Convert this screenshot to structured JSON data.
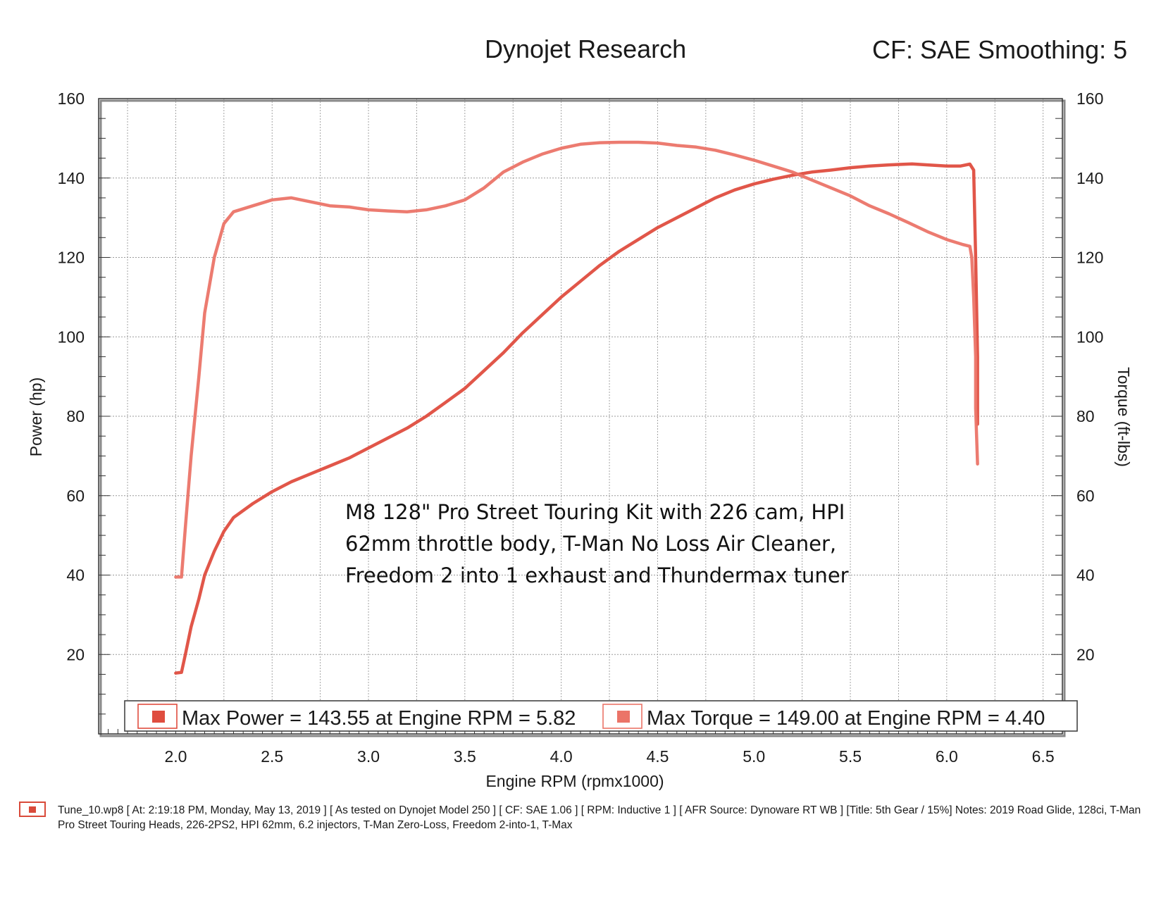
{
  "header": {
    "title": "Dynojet Research",
    "settings": "CF: SAE Smoothing: 5"
  },
  "annotation": {
    "lines": [
      "M8 128\" Pro Street Touring Kit with 226 cam, HPI",
      "62mm throttle body, T-Man No Loss Air Cleaner,",
      "Freedom 2 into 1 exhaust and Thundermax tuner"
    ]
  },
  "legend": {
    "power": "Max Power = 143.55 at Engine RPM = 5.82",
    "torque": "Max Torque = 149.00 at Engine RPM = 4.40"
  },
  "footer": {
    "text": "Tune_10.wp8 [ At: 2:19:18 PM, Monday, May 13, 2019 ] [ As tested on Dynojet Model 250 ] [ CF: SAE 1.06 ] [ RPM: Inductive 1 ] [ AFR Source: Dynoware RT WB ] [Title: 5th Gear / 15%]  Notes: 2019 Road Glide, 128ci, T-Man Pro Street Touring Heads, 226-2PS2, HPI 62mm, 6.2 injectors, T-Man Zero-Loss, Freedom 2-into-1, T-Max"
  },
  "colors": {
    "power": "#df4d3f",
    "torque": "#eb7468",
    "grid": "#9a9a9a",
    "frame": "#333333"
  },
  "chart_data": {
    "type": "line",
    "title": "Dynojet Research",
    "xlabel": "Engine RPM (rpmx1000)",
    "ylabel_left": "Power (hp)",
    "ylabel_right": "Torque (ft-lbs)",
    "xlim": [
      1.6,
      6.6
    ],
    "ylim": [
      0,
      160
    ],
    "x_ticks": [
      "2.0",
      "2.5",
      "3.0",
      "3.5",
      "4.0",
      "4.5",
      "5.0",
      "5.5",
      "6.0",
      "6.5"
    ],
    "y_ticks": [
      "20",
      "40",
      "60",
      "80",
      "100",
      "120",
      "140",
      "160"
    ],
    "grid": true,
    "series": [
      {
        "name": "Power",
        "axis": "left",
        "points": [
          [
            2.0,
            15.3
          ],
          [
            2.03,
            15.5
          ],
          [
            2.05,
            20
          ],
          [
            2.08,
            27
          ],
          [
            2.12,
            34
          ],
          [
            2.15,
            40
          ],
          [
            2.2,
            46
          ],
          [
            2.25,
            51
          ],
          [
            2.3,
            54.5
          ],
          [
            2.4,
            58
          ],
          [
            2.5,
            61
          ],
          [
            2.6,
            63.5
          ],
          [
            2.7,
            65.5
          ],
          [
            2.8,
            67.5
          ],
          [
            2.9,
            69.5
          ],
          [
            3.0,
            72
          ],
          [
            3.1,
            74.5
          ],
          [
            3.2,
            77
          ],
          [
            3.3,
            80
          ],
          [
            3.4,
            83.5
          ],
          [
            3.5,
            87
          ],
          [
            3.6,
            91.5
          ],
          [
            3.7,
            96
          ],
          [
            3.8,
            101
          ],
          [
            3.9,
            105.5
          ],
          [
            4.0,
            110
          ],
          [
            4.1,
            114
          ],
          [
            4.2,
            118
          ],
          [
            4.3,
            121.5
          ],
          [
            4.4,
            124.5
          ],
          [
            4.5,
            127.5
          ],
          [
            4.6,
            130
          ],
          [
            4.7,
            132.5
          ],
          [
            4.8,
            135
          ],
          [
            4.9,
            137
          ],
          [
            5.0,
            138.5
          ],
          [
            5.1,
            139.7
          ],
          [
            5.2,
            140.7
          ],
          [
            5.3,
            141.5
          ],
          [
            5.4,
            142
          ],
          [
            5.5,
            142.6
          ],
          [
            5.6,
            143
          ],
          [
            5.7,
            143.3
          ],
          [
            5.82,
            143.55
          ],
          [
            5.9,
            143.3
          ],
          [
            6.0,
            143
          ],
          [
            6.07,
            143
          ],
          [
            6.12,
            143.5
          ],
          [
            6.14,
            142
          ],
          [
            6.15,
            120
          ],
          [
            6.16,
            95
          ],
          [
            6.16,
            78
          ]
        ]
      },
      {
        "name": "Torque",
        "axis": "right",
        "points": [
          [
            2.0,
            39.5
          ],
          [
            2.03,
            39.5
          ],
          [
            2.05,
            52
          ],
          [
            2.08,
            70
          ],
          [
            2.12,
            90
          ],
          [
            2.15,
            106
          ],
          [
            2.2,
            120
          ],
          [
            2.25,
            128.5
          ],
          [
            2.3,
            131.5
          ],
          [
            2.4,
            133
          ],
          [
            2.5,
            134.5
          ],
          [
            2.6,
            135
          ],
          [
            2.7,
            134
          ],
          [
            2.8,
            133
          ],
          [
            2.9,
            132.7
          ],
          [
            3.0,
            132
          ],
          [
            3.1,
            131.7
          ],
          [
            3.2,
            131.5
          ],
          [
            3.3,
            132
          ],
          [
            3.4,
            133
          ],
          [
            3.5,
            134.5
          ],
          [
            3.6,
            137.5
          ],
          [
            3.7,
            141.5
          ],
          [
            3.8,
            144
          ],
          [
            3.9,
            146
          ],
          [
            4.0,
            147.5
          ],
          [
            4.1,
            148.5
          ],
          [
            4.2,
            148.9
          ],
          [
            4.3,
            149
          ],
          [
            4.4,
            149
          ],
          [
            4.5,
            148.8
          ],
          [
            4.6,
            148.2
          ],
          [
            4.7,
            147.8
          ],
          [
            4.8,
            147
          ],
          [
            4.9,
            145.8
          ],
          [
            5.0,
            144.5
          ],
          [
            5.1,
            143
          ],
          [
            5.2,
            141.5
          ],
          [
            5.3,
            139.5
          ],
          [
            5.4,
            137.5
          ],
          [
            5.5,
            135.5
          ],
          [
            5.6,
            133
          ],
          [
            5.7,
            131
          ],
          [
            5.8,
            128.8
          ],
          [
            5.9,
            126.5
          ],
          [
            6.0,
            124.5
          ],
          [
            6.08,
            123.3
          ],
          [
            6.12,
            122.8
          ],
          [
            6.13,
            120
          ],
          [
            6.14,
            110
          ],
          [
            6.15,
            95
          ],
          [
            6.15,
            82
          ],
          [
            6.16,
            68
          ]
        ]
      }
    ]
  }
}
